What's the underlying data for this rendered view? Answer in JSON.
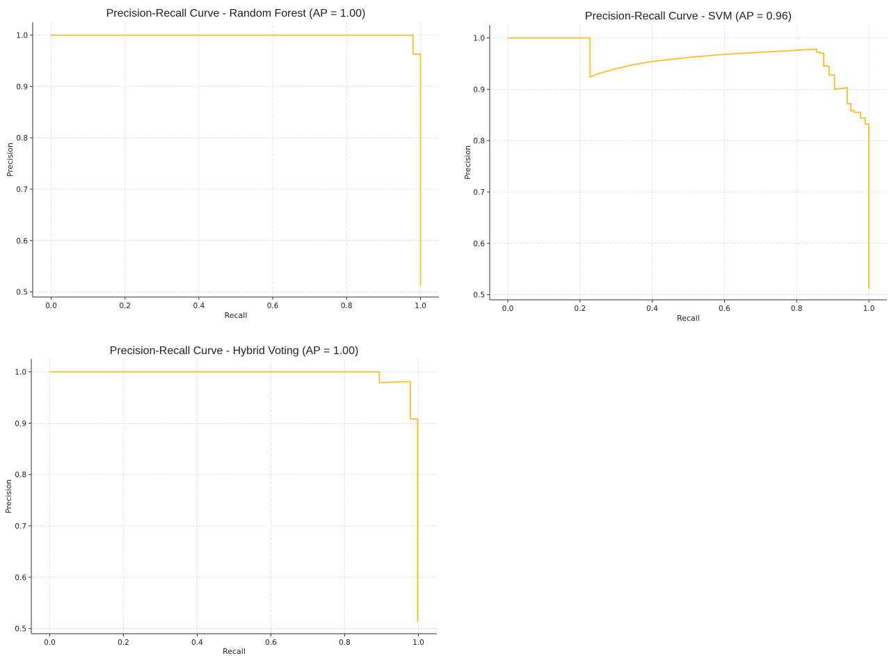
{
  "style": {
    "curve_color": "#fbbc2e",
    "grid_color": "#cfcfcf",
    "axis_color": "#333333"
  },
  "chart_data": [
    {
      "type": "line",
      "step": true,
      "title": "Precision-Recall Curve - Random Forest (AP = 1.00)",
      "xlabel": "Recall",
      "ylabel": "Precision",
      "xlim": [
        -0.05,
        1.05
      ],
      "ylim": [
        0.49,
        1.025
      ],
      "xticks": [
        0.0,
        0.2,
        0.4,
        0.6,
        0.8,
        1.0
      ],
      "xtick_labels": [
        "0.0",
        "0.2",
        "0.4",
        "0.6",
        "0.8",
        "1.0"
      ],
      "yticks": [
        0.5,
        0.6,
        0.7,
        0.8,
        0.9,
        1.0
      ],
      "ytick_labels": [
        "0.5",
        "0.6",
        "0.7",
        "0.8",
        "0.9",
        "1.0"
      ],
      "grid": true,
      "series": [
        {
          "color": "#fbbc2e",
          "x": [
            0.0,
            0.98,
            0.98,
            1.0,
            1.0
          ],
          "y": [
            1.0,
            1.0,
            0.963,
            0.963,
            0.512
          ]
        }
      ]
    },
    {
      "type": "line",
      "step": true,
      "title": "Precision-Recall Curve - SVM (AP = 0.96)",
      "xlabel": "Recall",
      "ylabel": "Precision",
      "xlim": [
        -0.05,
        1.05
      ],
      "ylim": [
        0.49,
        1.025
      ],
      "xticks": [
        0.0,
        0.2,
        0.4,
        0.6,
        0.8,
        1.0
      ],
      "xtick_labels": [
        "0.0",
        "0.2",
        "0.4",
        "0.6",
        "0.8",
        "1.0"
      ],
      "yticks": [
        0.5,
        0.6,
        0.7,
        0.8,
        0.9,
        1.0
      ],
      "ytick_labels": [
        "0.5",
        "0.6",
        "0.7",
        "0.8",
        "0.9",
        "1.0"
      ],
      "grid": true,
      "series": [
        {
          "color": "#fbbc2e",
          "x": [
            0.0,
            0.228,
            0.228,
            0.25,
            0.3,
            0.35,
            0.4,
            0.5,
            0.6,
            0.7,
            0.8,
            0.855,
            0.855,
            0.865,
            0.865,
            0.875,
            0.875,
            0.89,
            0.89,
            0.905,
            0.905,
            0.94,
            0.94,
            0.95,
            0.95,
            0.96,
            0.96,
            0.977,
            0.977,
            0.99,
            0.99,
            1.0,
            1.0
          ],
          "y": [
            1.0,
            1.0,
            0.924,
            0.93,
            0.94,
            0.948,
            0.954,
            0.962,
            0.968,
            0.972,
            0.976,
            0.978,
            0.972,
            0.972,
            0.97,
            0.97,
            0.945,
            0.945,
            0.928,
            0.928,
            0.9,
            0.903,
            0.872,
            0.872,
            0.858,
            0.858,
            0.855,
            0.855,
            0.844,
            0.844,
            0.832,
            0.832,
            0.512
          ]
        }
      ]
    },
    {
      "type": "line",
      "step": true,
      "title": "Precision-Recall Curve - Hybrid Voting (AP = 1.00)",
      "xlabel": "Recall",
      "ylabel": "Precision",
      "xlim": [
        -0.05,
        1.05
      ],
      "ylim": [
        0.49,
        1.025
      ],
      "xticks": [
        0.0,
        0.2,
        0.4,
        0.6,
        0.8,
        1.0
      ],
      "xtick_labels": [
        "0.0",
        "0.2",
        "0.4",
        "0.6",
        "0.8",
        "1.0"
      ],
      "yticks": [
        0.5,
        0.6,
        0.7,
        0.8,
        0.9,
        1.0
      ],
      "ytick_labels": [
        "0.5",
        "0.6",
        "0.7",
        "0.8",
        "0.9",
        "1.0"
      ],
      "grid": true,
      "series": [
        {
          "color": "#fbbc2e",
          "x": [
            0.0,
            0.894,
            0.894,
            0.978,
            0.978,
            0.998,
            0.998
          ],
          "y": [
            1.0,
            1.0,
            0.979,
            0.981,
            0.908,
            0.908,
            0.513
          ]
        }
      ]
    }
  ]
}
